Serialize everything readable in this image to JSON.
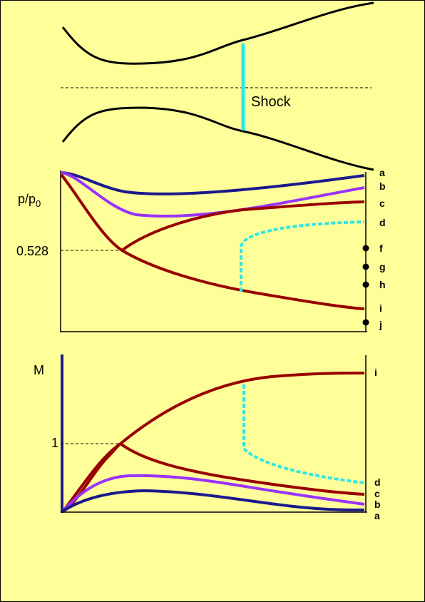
{
  "nozzle": {
    "shock_label": "Shock"
  },
  "pressure_plot": {
    "ylabel_main": "p/p",
    "ylabel_sub": "0",
    "reference_value": "0.528",
    "curve_labels": [
      "a",
      "b",
      "c",
      "d",
      "f",
      "g",
      "h",
      "i",
      "j"
    ]
  },
  "mach_plot": {
    "ylabel": "M",
    "reference_value": "1",
    "curve_labels": [
      "i",
      "d",
      "c",
      "b",
      "a"
    ]
  },
  "colors": {
    "background": "#ffff99",
    "curve_a": "#1a1a8c",
    "curve_b": "#9933ff",
    "curve_c_to_i": "#990000",
    "shock": "#33e6e6",
    "wall": "#000000"
  }
}
